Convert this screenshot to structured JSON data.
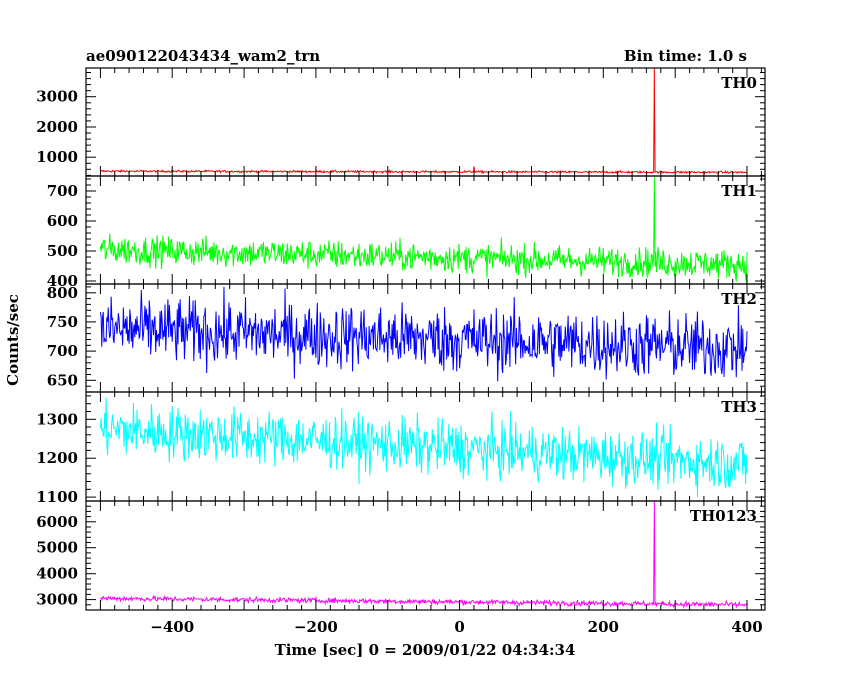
{
  "header": {
    "title": "ae090122043434_wam2_trn",
    "bin_time": "Bin time: 1.0 s"
  },
  "chart_data": {
    "type": "line",
    "title": "ae090122043434_wam2_trn",
    "subtitle": "Bin time: 1.0 s",
    "xlabel": "Time [sec] 0 = 2009/01/22 04:34:34",
    "ylabel": "Counts/sec",
    "xlim": [
      -520,
      425
    ],
    "x_ticks": [
      -400,
      -200,
      0,
      200,
      400
    ],
    "x_tick_labels": [
      "−400",
      "−200",
      "0",
      "200",
      "400"
    ],
    "x_range_data": [
      -500,
      400
    ],
    "bin_time_s": 1.0,
    "grid": false,
    "panels": [
      {
        "name": "TH0",
        "color": "#ff0000",
        "ylim": [
          380,
          3950
        ],
        "yticks": [
          1000,
          2000,
          3000
        ],
        "ytick_labels": [
          "1000",
          "2000",
          "3000"
        ],
        "mean_trend": [
          [
            -500,
            540
          ],
          [
            400,
            500
          ]
        ],
        "noise_amplitude": 25,
        "features": [
          {
            "x": 20,
            "y": 700
          },
          {
            "x": 271,
            "y": 3950
          }
        ]
      },
      {
        "name": "TH1",
        "color": "#00ff00",
        "ylim": [
          390,
          750
        ],
        "yticks": [
          400,
          500,
          600,
          700
        ],
        "ytick_labels": [
          "400",
          "500",
          "600",
          "700"
        ],
        "mean_trend": [
          [
            -500,
            505
          ],
          [
            400,
            455
          ]
        ],
        "noise_amplitude": 35,
        "features": [
          {
            "x": 271,
            "y": 750
          }
        ]
      },
      {
        "name": "TH2",
        "color": "#0000ff",
        "ylim": [
          630,
          815
        ],
        "yticks": [
          650,
          700,
          750,
          800
        ],
        "ytick_labels": [
          "650",
          "700",
          "750",
          "800"
        ],
        "mean_trend": [
          [
            -500,
            738
          ],
          [
            400,
            705
          ]
        ],
        "noise_amplitude": 40,
        "features": []
      },
      {
        "name": "TH3",
        "color": "#00ffff",
        "ylim": [
          1090,
          1370
        ],
        "yticks": [
          1100,
          1200,
          1300
        ],
        "ytick_labels": [
          "1100",
          "1200",
          "1300"
        ],
        "mean_trend": [
          [
            -500,
            1275
          ],
          [
            400,
            1185
          ]
        ],
        "noise_amplitude": 50,
        "features": []
      },
      {
        "name": "TH0123",
        "color": "#ff00ff",
        "ylim": [
          2600,
          6800
        ],
        "yticks": [
          3000,
          4000,
          5000,
          6000
        ],
        "ytick_labels": [
          "3000",
          "4000",
          "5000",
          "6000"
        ],
        "mean_trend": [
          [
            -500,
            3050
          ],
          [
            400,
            2800
          ]
        ],
        "noise_amplitude": 70,
        "features": [
          {
            "x": 271,
            "y": 6800
          }
        ]
      }
    ]
  }
}
